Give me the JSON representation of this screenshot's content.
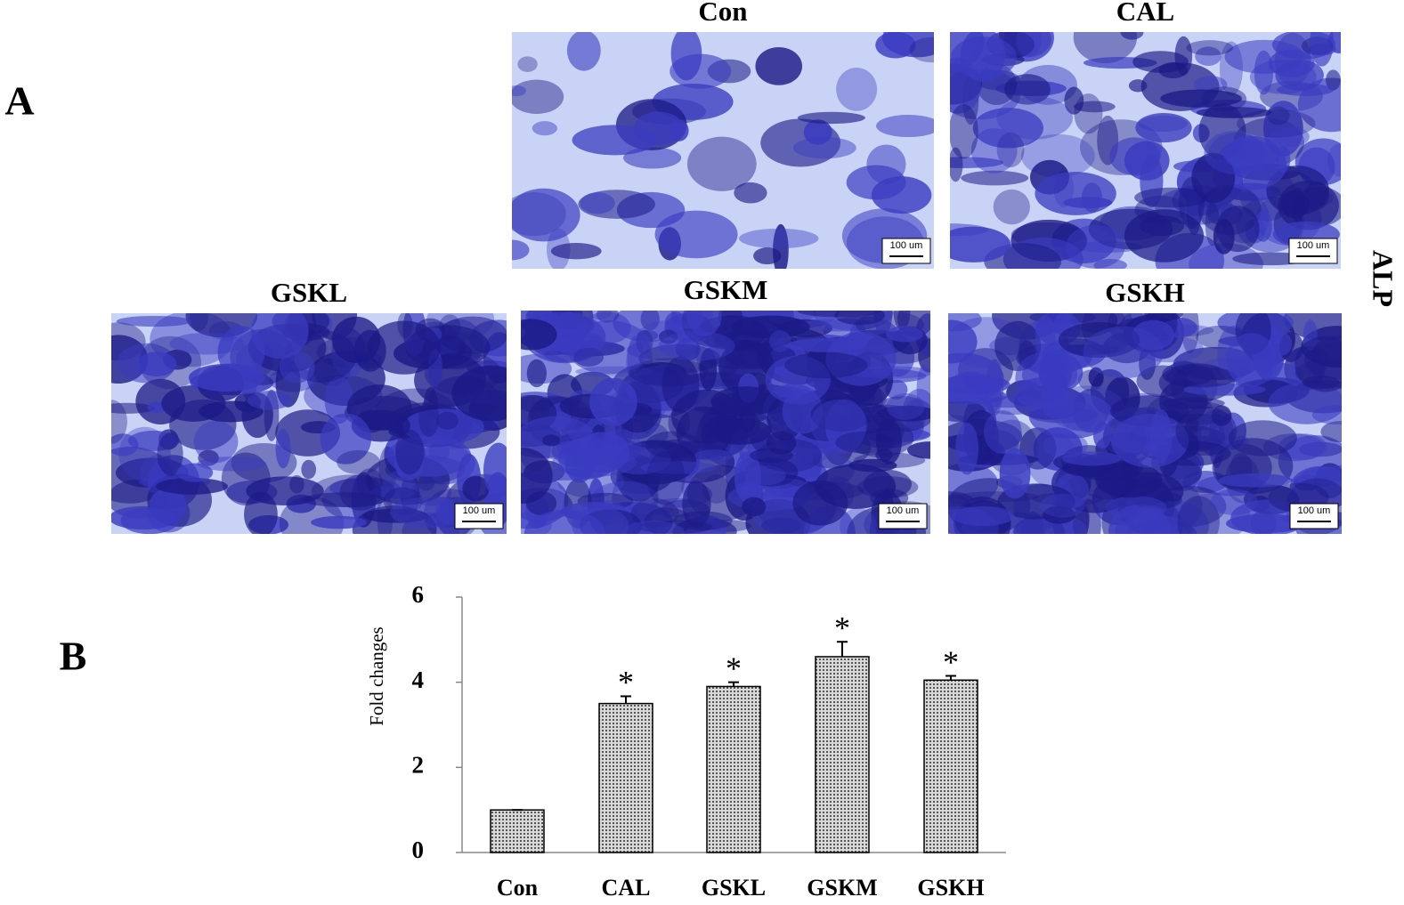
{
  "panel_a": {
    "label": "A",
    "side_label": "ALP",
    "images": [
      {
        "label": "Con",
        "scale": "100 um"
      },
      {
        "label": "CAL",
        "scale": "100 um"
      },
      {
        "label": "GSKL",
        "scale": "100 um"
      },
      {
        "label": "GSKM",
        "scale": "100 um"
      },
      {
        "label": "GSKH",
        "scale": "100 um"
      }
    ]
  },
  "panel_b": {
    "label": "B"
  },
  "chart_data": {
    "type": "bar",
    "y_label": "Fold changes",
    "categories": [
      "Con",
      "CAL",
      "GSKL",
      "GSKM",
      "GSKH"
    ],
    "values": [
      1,
      3.5,
      3.9,
      4.6,
      4.05
    ],
    "errors": [
      0,
      0.17,
      0.1,
      0.35,
      0.1
    ],
    "annotations": [
      null,
      "*",
      "*",
      "*",
      "*"
    ],
    "color": "#9a9a9a",
    "ylim": [
      0,
      6
    ],
    "yticks": [
      0,
      2,
      4,
      6
    ]
  }
}
